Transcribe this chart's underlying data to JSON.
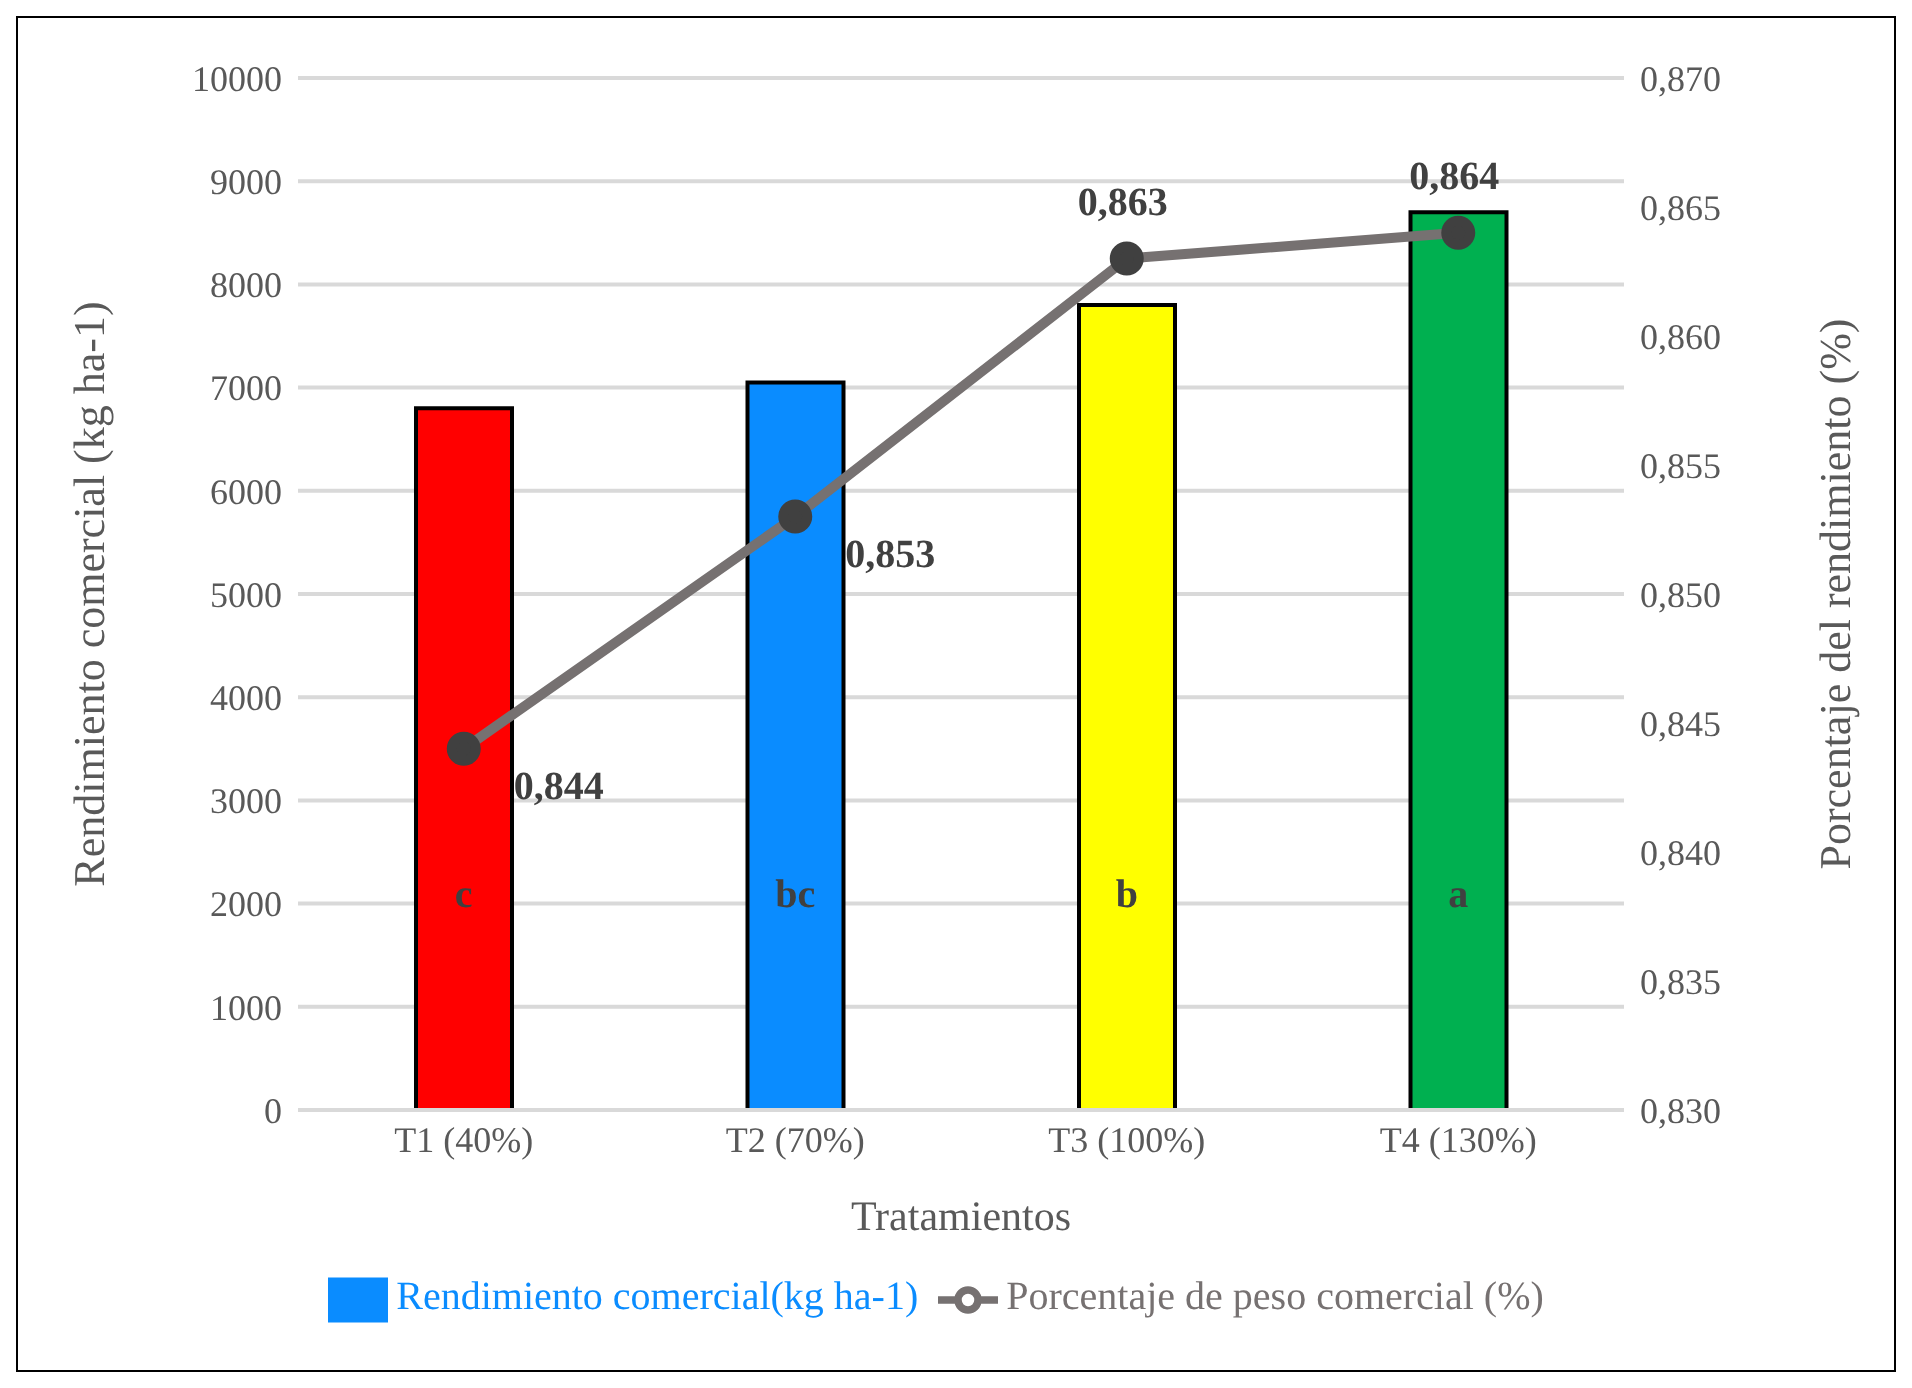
{
  "chart_data": {
    "type": "bar",
    "xlabel": "Tratamientos",
    "ylabel": "Rendimiento comercial (kg ha-1)",
    "y2label": "Porcentaje del rendimiento (%)",
    "categories": [
      "T1 (40%)",
      "T2 (70%)",
      "T3 (100%)",
      "T4 (130%)"
    ],
    "series": [
      {
        "name": "Rendimiento comercial(kg ha-1)",
        "color": "#0a8cff",
        "colors": [
          "#ff0000",
          "#0a8cff",
          "#ffff00",
          "#00b050"
        ],
        "values": [
          6800,
          7050,
          7800,
          8700
        ]
      },
      {
        "name": "Porcentaje de peso comercial (%)",
        "type": "line",
        "axis": "y2",
        "color": "#767171",
        "marker": "circle",
        "values": [
          0.844,
          0.853,
          0.863,
          0.864
        ],
        "value_labels": [
          "0,844",
          "0,853",
          "0,863",
          "0,864"
        ]
      }
    ],
    "ylim": [
      0,
      10000
    ],
    "yticks": [
      0,
      1000,
      2000,
      3000,
      4000,
      5000,
      6000,
      7000,
      8000,
      9000,
      10000
    ],
    "y2lim": [
      0.83,
      0.87
    ],
    "y2ticks": [
      {
        "value": 0.83,
        "label": "0,830"
      },
      {
        "value": 0.835,
        "label": "0,835"
      },
      {
        "value": 0.84,
        "label": "0,840"
      },
      {
        "value": 0.845,
        "label": "0,845"
      },
      {
        "value": 0.85,
        "label": "0,850"
      },
      {
        "value": 0.855,
        "label": "0,855"
      },
      {
        "value": 0.86,
        "label": "0,860"
      },
      {
        "value": 0.865,
        "label": "0,865"
      },
      {
        "value": 0.87,
        "label": "0,870"
      }
    ],
    "annotations": [
      "c",
      "bc",
      "b",
      "a"
    ],
    "grid": "y",
    "legend": "bottom"
  }
}
